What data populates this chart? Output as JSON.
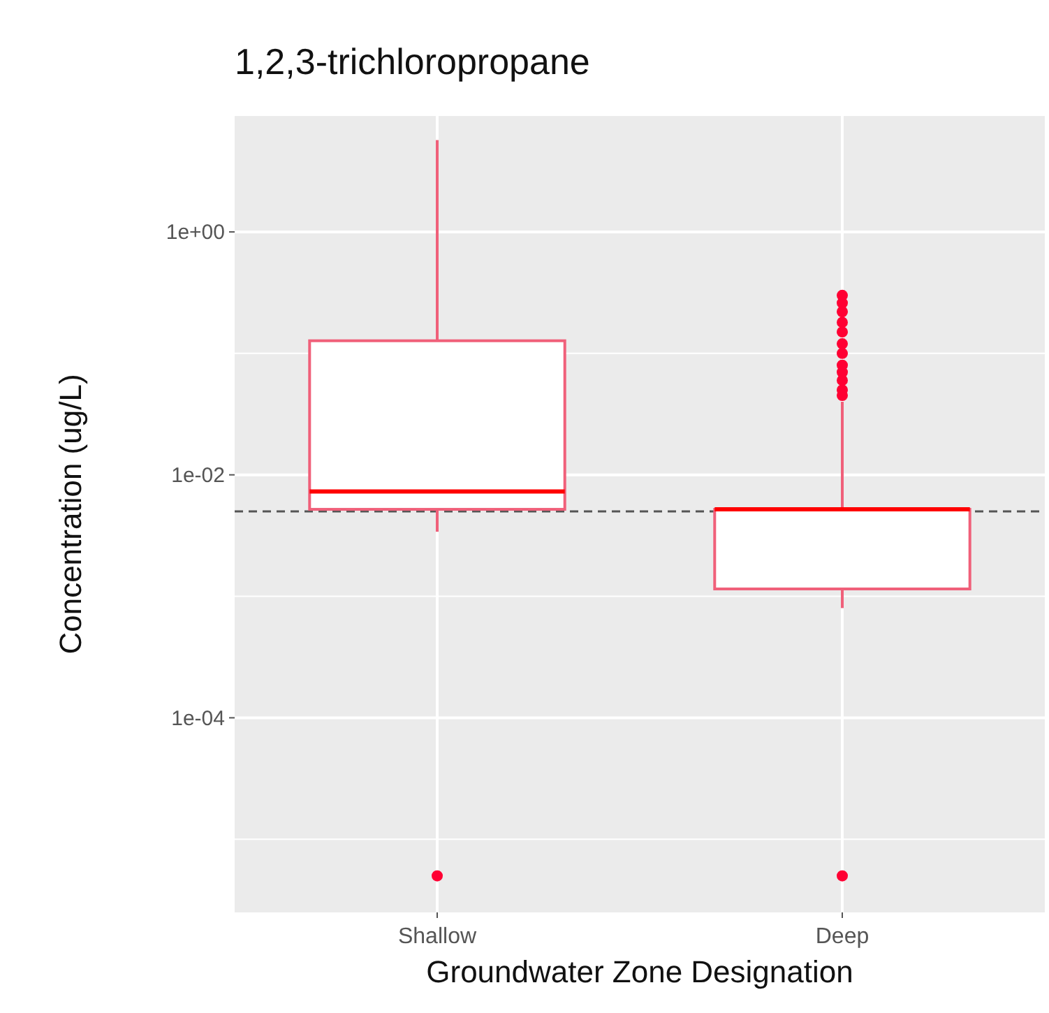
{
  "chart_data": {
    "type": "box",
    "title": "1,2,3-trichloropropane",
    "xlabel": "Groundwater Zone Designation",
    "ylabel": "Concentration (ug/L)",
    "categories": [
      "Shallow",
      "Deep"
    ],
    "series": [
      {
        "color": "#f0607a",
        "boxes": [
          {
            "low": 0.0034,
            "q1": 0.0052,
            "median": 0.0073,
            "q3": 0.127,
            "high": 5.7,
            "outliers": [
              5e-06
            ]
          },
          {
            "low": 0.0008,
            "q1": 0.00115,
            "median": 0.0052,
            "q3": 0.0052,
            "high": 0.04,
            "outliers": [
              5e-06,
              0.045,
              0.05,
              0.06,
              0.07,
              0.08,
              0.1,
              0.12,
              0.15,
              0.18,
              0.22,
              0.26,
              0.3
            ]
          }
        ]
      }
    ],
    "log": true,
    "ylim": [
      2.5e-06,
      9
    ],
    "yticks": [
      {
        "value": 1,
        "label": "1e+00"
      },
      {
        "value": 0.1,
        "label": null
      },
      {
        "value": 0.01,
        "label": "1e-02"
      },
      {
        "value": 0.001,
        "label": null
      },
      {
        "value": 0.0001,
        "label": "1e-04"
      },
      {
        "value": 1e-05,
        "label": null
      }
    ],
    "grid": true,
    "ref_lines": [
      {
        "axis": "y",
        "value": 0.005,
        "color": "#555555",
        "line_style": "dashed"
      }
    ]
  }
}
